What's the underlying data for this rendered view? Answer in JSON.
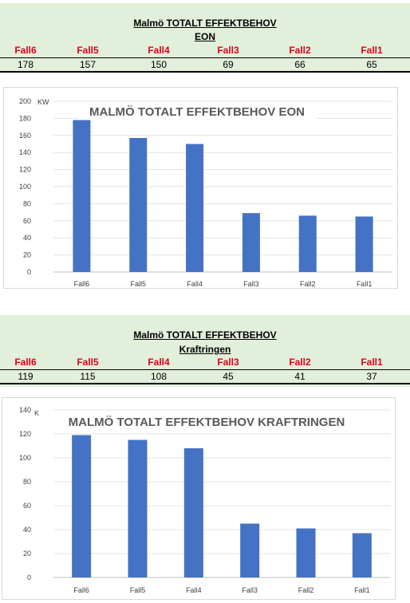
{
  "tables": [
    {
      "title_line1": "Malmö TOTALT EFFEKTBEHOV",
      "title_line2": "EON",
      "headers": [
        "Fall6",
        "Fall5",
        "Fall4",
        "Fall3",
        "Fall2",
        "Fall1"
      ],
      "values": [
        "178",
        "157",
        "150",
        "69",
        "66",
        "65"
      ]
    },
    {
      "title_line1": "Malmö TOTALT EFFEKTBEHOV",
      "title_line2": "Kraftringen",
      "headers": [
        "Fall6",
        "Fall5",
        "Fall4",
        "Fall3",
        "Fall2",
        "Fall1"
      ],
      "values": [
        "119",
        "115",
        "108",
        "45",
        "41",
        "37"
      ]
    }
  ],
  "chart_data": [
    {
      "type": "bar",
      "title": "MALMÖ TOTALT EFFEKTBEHOV EON",
      "ylabel": "KW",
      "categories": [
        "Fall6",
        "Fall5",
        "Fall4",
        "Fall3",
        "Fall2",
        "Fall1"
      ],
      "values": [
        178,
        157,
        150,
        69,
        66,
        65
      ],
      "ylim": [
        0,
        200
      ],
      "yticks": [
        0,
        20,
        40,
        60,
        80,
        100,
        120,
        140,
        160,
        180,
        200
      ],
      "grid": true,
      "bar_color": "#4472c4"
    },
    {
      "type": "bar",
      "title": "MALMÖ TOTALT EFFEKTBEHOV KRAFTRINGEN",
      "ylabel": "K",
      "categories": [
        "Fall6",
        "Fall5",
        "Fall4",
        "Fall3",
        "Fall2",
        "Fall1"
      ],
      "values": [
        119,
        115,
        108,
        45,
        41,
        37
      ],
      "ylim": [
        0,
        140
      ],
      "yticks": [
        0,
        20,
        40,
        60,
        80,
        100,
        120,
        140
      ],
      "grid": true,
      "bar_color": "#4472c4"
    }
  ]
}
